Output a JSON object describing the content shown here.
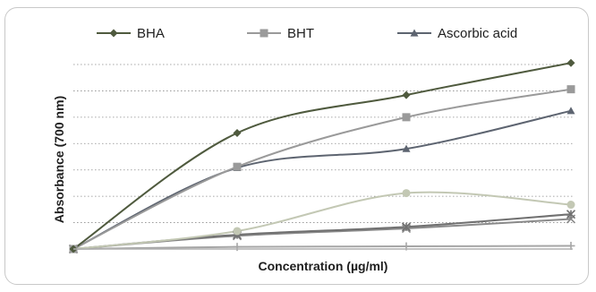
{
  "chart_data": {
    "type": "line",
    "title": "",
    "xlabel": "Concentration (µg/ml)",
    "ylabel": "Absorbance (700 nm)",
    "x": [
      0,
      1,
      2,
      3
    ],
    "ylim": [
      0,
      3.5
    ],
    "grid": true,
    "legend_position": "top",
    "series": [
      {
        "name": "BHA",
        "color": "#4f5a3e",
        "marker": "diamond",
        "values": [
          0,
          2.2,
          2.92,
          3.53
        ]
      },
      {
        "name": "BHT",
        "color": "#9a9a9a",
        "marker": "square",
        "values": [
          0,
          1.56,
          2.5,
          3.03
        ]
      },
      {
        "name": "Ascorbic acid",
        "color": "#5d6470",
        "marker": "triangle",
        "values": [
          0,
          1.54,
          1.9,
          2.62
        ]
      },
      {
        "name": "",
        "color": "#c3c8b4",
        "marker": "circle",
        "values": [
          0,
          0.34,
          1.06,
          0.84
        ]
      },
      {
        "name": "",
        "color": "#707070",
        "marker": "star",
        "values": [
          0,
          0.27,
          0.42,
          0.66
        ]
      },
      {
        "name": "",
        "color": "#8a8a8a",
        "marker": "x",
        "values": [
          0,
          0.25,
          0.39,
          0.57
        ]
      },
      {
        "name": "",
        "color": "#a6a6a6",
        "marker": "plus",
        "values": [
          0,
          0.04,
          0.05,
          0.06
        ]
      }
    ]
  }
}
